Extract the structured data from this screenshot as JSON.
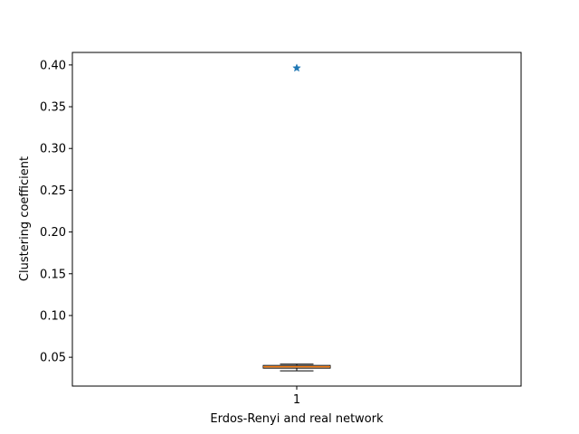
{
  "chart_data": {
    "type": "boxplot",
    "title": "",
    "xlabel": "Erdos-Renyi and real network",
    "ylabel": "Clustering coefficient",
    "categories": [
      "1"
    ],
    "ylim": [
      0.0155,
      0.415
    ],
    "yticks": [
      0.05,
      0.1,
      0.15,
      0.2,
      0.25,
      0.3,
      0.35,
      0.4
    ],
    "ytick_labels": [
      "0.05",
      "0.10",
      "0.15",
      "0.20",
      "0.25",
      "0.30",
      "0.35",
      "0.40"
    ],
    "grid": false,
    "legend": "none",
    "box": {
      "whisker_low": 0.0338,
      "q1": 0.037,
      "median": 0.0386,
      "q3": 0.0402,
      "whisker_high": 0.0418
    },
    "real_network_point": {
      "x": "1",
      "y": 0.3963,
      "marker": "star"
    },
    "colors": {
      "box": "#000000",
      "median": "#ff7f0e",
      "point": "#1f77b4"
    }
  }
}
